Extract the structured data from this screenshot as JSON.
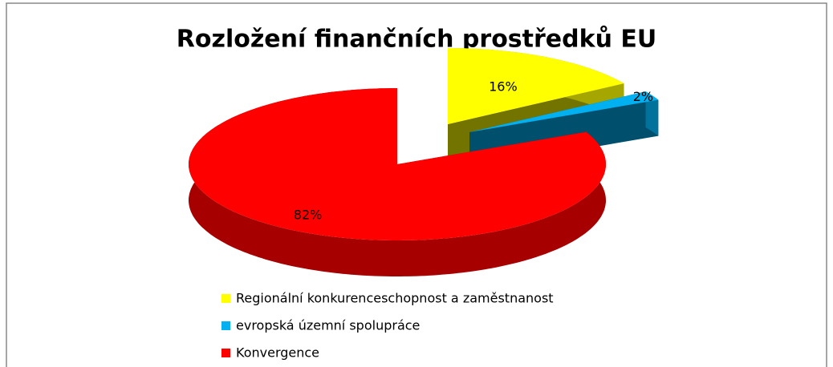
{
  "chart_data": {
    "type": "pie",
    "title": "Rozložení finančních prostředků EU",
    "categories": [
      "Regionální konkurenceschopnost a zaměstnanost",
      "evropská územní spolupráce",
      "Konvergence"
    ],
    "values": [
      16,
      2,
      82
    ],
    "value_labels": [
      "16%",
      "2%",
      "82%"
    ],
    "colors": [
      "#ffff00",
      "#00b0f0",
      "#ff0000"
    ]
  }
}
